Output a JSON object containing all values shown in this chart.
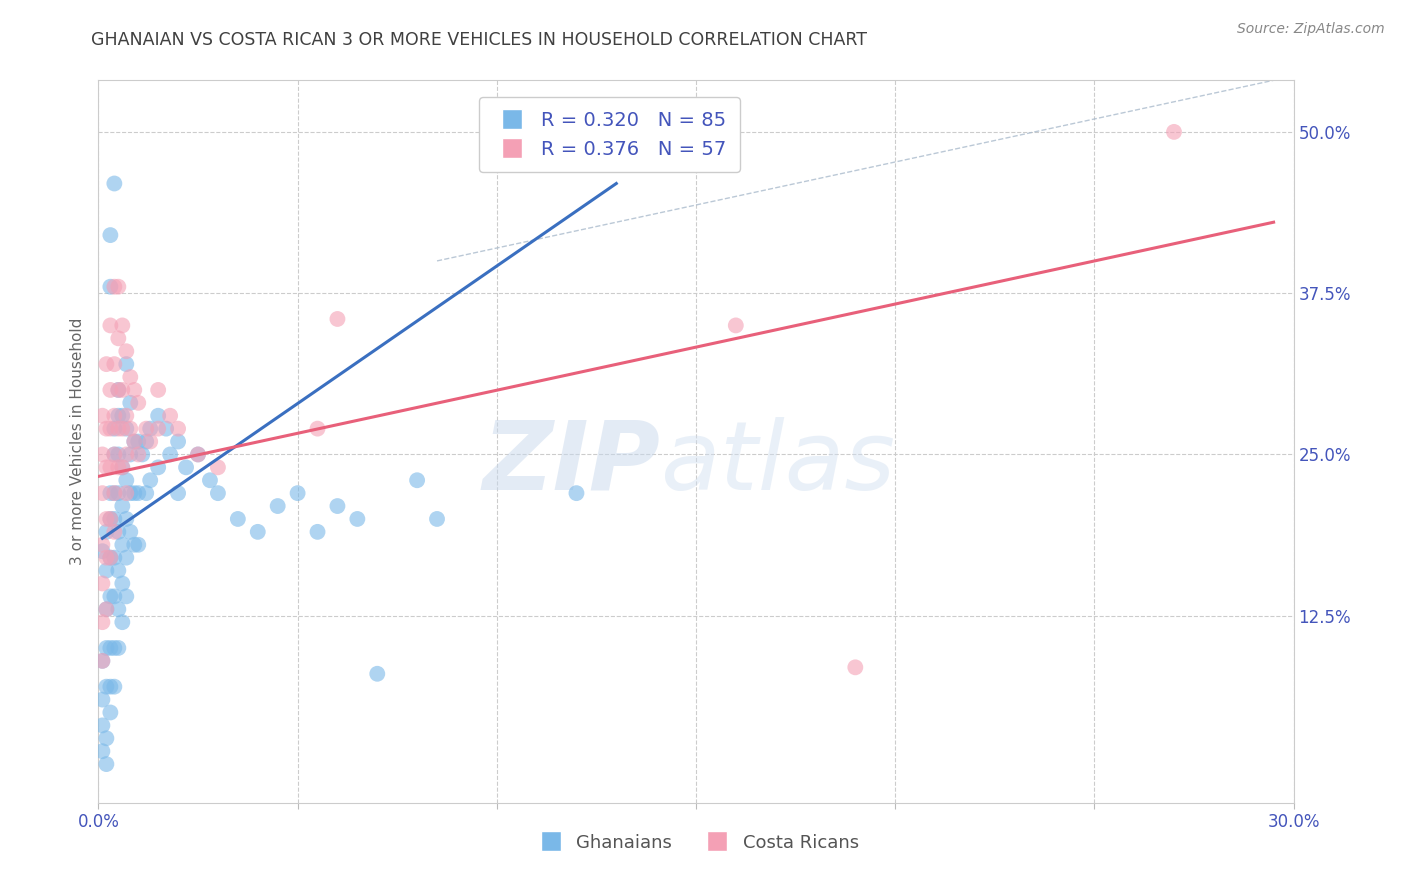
{
  "title": "GHANAIAN VS COSTA RICAN 3 OR MORE VEHICLES IN HOUSEHOLD CORRELATION CHART",
  "source": "Source: ZipAtlas.com",
  "ylabel": "3 or more Vehicles in Household",
  "xlim": [
    0.0,
    0.3
  ],
  "ylim": [
    -0.02,
    0.54
  ],
  "xticks": [
    0.0,
    0.05,
    0.1,
    0.15,
    0.2,
    0.25,
    0.3
  ],
  "xticklabels": [
    "0.0%",
    "",
    "",
    "",
    "",
    "",
    "30.0%"
  ],
  "yticks_right": [
    0.125,
    0.25,
    0.375,
    0.5
  ],
  "yticklabels_right": [
    "12.5%",
    "25.0%",
    "37.5%",
    "50.0%"
  ],
  "blue_R": 0.32,
  "blue_N": 85,
  "pink_R": 0.376,
  "pink_N": 57,
  "blue_color": "#7ab8e8",
  "pink_color": "#f4a0b5",
  "blue_line_color": "#3a6fc0",
  "pink_line_color": "#e8607a",
  "legend_label_blue": "Ghanaians",
  "legend_label_pink": "Costa Ricans",
  "watermark_zip": "ZIP",
  "watermark_atlas": "atlas",
  "background_color": "#ffffff",
  "grid_color": "#cccccc",
  "title_color": "#404040",
  "axis_label_color": "#4455bb",
  "blue_scatter": [
    [
      0.001,
      0.175
    ],
    [
      0.001,
      0.09
    ],
    [
      0.001,
      0.06
    ],
    [
      0.001,
      0.04
    ],
    [
      0.002,
      0.19
    ],
    [
      0.002,
      0.16
    ],
    [
      0.002,
      0.13
    ],
    [
      0.002,
      0.07
    ],
    [
      0.002,
      0.03
    ],
    [
      0.002,
      0.01
    ],
    [
      0.003,
      0.42
    ],
    [
      0.003,
      0.38
    ],
    [
      0.003,
      0.22
    ],
    [
      0.003,
      0.2
    ],
    [
      0.003,
      0.17
    ],
    [
      0.003,
      0.14
    ],
    [
      0.003,
      0.1
    ],
    [
      0.003,
      0.07
    ],
    [
      0.003,
      0.05
    ],
    [
      0.004,
      0.46
    ],
    [
      0.004,
      0.27
    ],
    [
      0.004,
      0.25
    ],
    [
      0.004,
      0.22
    ],
    [
      0.004,
      0.2
    ],
    [
      0.004,
      0.17
    ],
    [
      0.004,
      0.14
    ],
    [
      0.004,
      0.1
    ],
    [
      0.004,
      0.07
    ],
    [
      0.005,
      0.3
    ],
    [
      0.005,
      0.28
    ],
    [
      0.005,
      0.25
    ],
    [
      0.005,
      0.22
    ],
    [
      0.005,
      0.19
    ],
    [
      0.005,
      0.16
    ],
    [
      0.005,
      0.13
    ],
    [
      0.005,
      0.1
    ],
    [
      0.006,
      0.28
    ],
    [
      0.006,
      0.24
    ],
    [
      0.006,
      0.21
    ],
    [
      0.006,
      0.18
    ],
    [
      0.006,
      0.15
    ],
    [
      0.006,
      0.12
    ],
    [
      0.007,
      0.32
    ],
    [
      0.007,
      0.27
    ],
    [
      0.007,
      0.23
    ],
    [
      0.007,
      0.2
    ],
    [
      0.007,
      0.17
    ],
    [
      0.007,
      0.14
    ],
    [
      0.008,
      0.29
    ],
    [
      0.008,
      0.25
    ],
    [
      0.008,
      0.22
    ],
    [
      0.008,
      0.19
    ],
    [
      0.009,
      0.26
    ],
    [
      0.009,
      0.22
    ],
    [
      0.009,
      0.18
    ],
    [
      0.01,
      0.26
    ],
    [
      0.01,
      0.22
    ],
    [
      0.01,
      0.18
    ],
    [
      0.011,
      0.25
    ],
    [
      0.012,
      0.26
    ],
    [
      0.012,
      0.22
    ],
    [
      0.013,
      0.27
    ],
    [
      0.013,
      0.23
    ],
    [
      0.015,
      0.28
    ],
    [
      0.015,
      0.24
    ],
    [
      0.017,
      0.27
    ],
    [
      0.018,
      0.25
    ],
    [
      0.02,
      0.26
    ],
    [
      0.02,
      0.22
    ],
    [
      0.022,
      0.24
    ],
    [
      0.025,
      0.25
    ],
    [
      0.028,
      0.23
    ],
    [
      0.03,
      0.22
    ],
    [
      0.035,
      0.2
    ],
    [
      0.04,
      0.19
    ],
    [
      0.045,
      0.21
    ],
    [
      0.05,
      0.22
    ],
    [
      0.055,
      0.19
    ],
    [
      0.06,
      0.21
    ],
    [
      0.065,
      0.2
    ],
    [
      0.07,
      0.08
    ],
    [
      0.08,
      0.23
    ],
    [
      0.085,
      0.2
    ],
    [
      0.12,
      0.22
    ],
    [
      0.002,
      0.1
    ],
    [
      0.001,
      0.02
    ]
  ],
  "pink_scatter": [
    [
      0.001,
      0.28
    ],
    [
      0.001,
      0.25
    ],
    [
      0.001,
      0.22
    ],
    [
      0.001,
      0.18
    ],
    [
      0.001,
      0.15
    ],
    [
      0.001,
      0.12
    ],
    [
      0.001,
      0.09
    ],
    [
      0.002,
      0.32
    ],
    [
      0.002,
      0.27
    ],
    [
      0.002,
      0.24
    ],
    [
      0.002,
      0.2
    ],
    [
      0.002,
      0.17
    ],
    [
      0.002,
      0.13
    ],
    [
      0.003,
      0.35
    ],
    [
      0.003,
      0.3
    ],
    [
      0.003,
      0.27
    ],
    [
      0.003,
      0.24
    ],
    [
      0.003,
      0.2
    ],
    [
      0.003,
      0.17
    ],
    [
      0.004,
      0.38
    ],
    [
      0.004,
      0.32
    ],
    [
      0.004,
      0.28
    ],
    [
      0.004,
      0.25
    ],
    [
      0.004,
      0.22
    ],
    [
      0.004,
      0.19
    ],
    [
      0.005,
      0.38
    ],
    [
      0.005,
      0.34
    ],
    [
      0.005,
      0.3
    ],
    [
      0.005,
      0.27
    ],
    [
      0.005,
      0.24
    ],
    [
      0.006,
      0.35
    ],
    [
      0.006,
      0.3
    ],
    [
      0.006,
      0.27
    ],
    [
      0.006,
      0.24
    ],
    [
      0.007,
      0.33
    ],
    [
      0.007,
      0.28
    ],
    [
      0.007,
      0.25
    ],
    [
      0.007,
      0.22
    ],
    [
      0.008,
      0.31
    ],
    [
      0.008,
      0.27
    ],
    [
      0.009,
      0.3
    ],
    [
      0.009,
      0.26
    ],
    [
      0.01,
      0.29
    ],
    [
      0.01,
      0.25
    ],
    [
      0.012,
      0.27
    ],
    [
      0.013,
      0.26
    ],
    [
      0.015,
      0.3
    ],
    [
      0.015,
      0.27
    ],
    [
      0.018,
      0.28
    ],
    [
      0.02,
      0.27
    ],
    [
      0.025,
      0.25
    ],
    [
      0.03,
      0.24
    ],
    [
      0.055,
      0.27
    ],
    [
      0.06,
      0.355
    ],
    [
      0.16,
      0.35
    ],
    [
      0.27,
      0.5
    ],
    [
      0.19,
      0.085
    ]
  ],
  "blue_line_x": [
    0.001,
    0.13
  ],
  "blue_line_y": [
    0.185,
    0.46
  ],
  "pink_line_x": [
    0.0,
    0.295
  ],
  "pink_line_y": [
    0.233,
    0.43
  ],
  "ref_line_x": [
    0.085,
    0.295
  ],
  "ref_line_y": [
    0.4,
    0.54
  ]
}
